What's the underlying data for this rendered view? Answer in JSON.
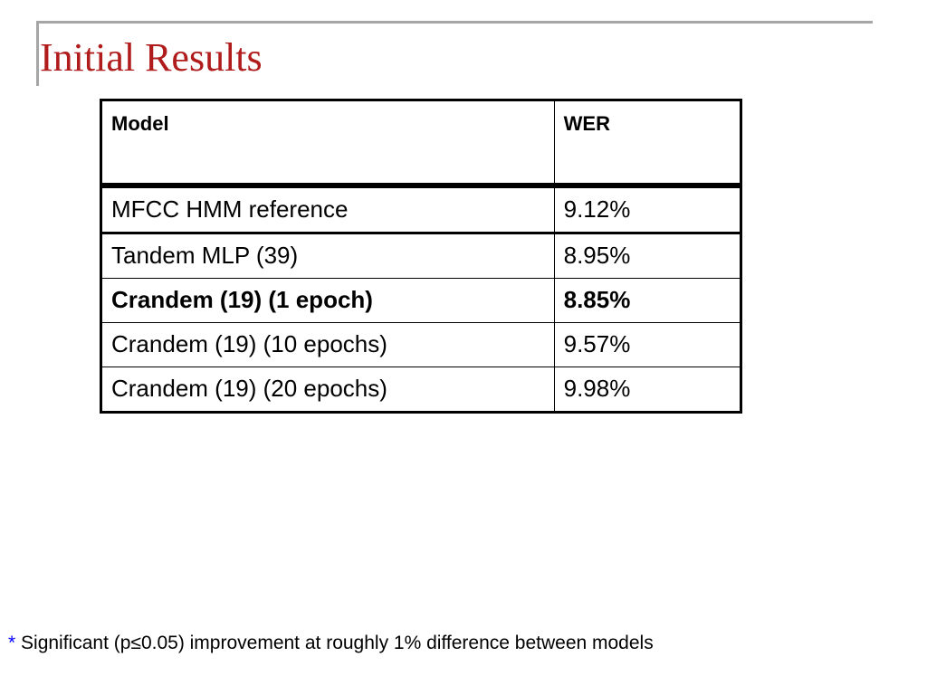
{
  "slide": {
    "title": "Initial Results"
  },
  "table": {
    "headers": [
      "Model",
      "WER"
    ],
    "rows": [
      {
        "model": "MFCC HMM reference",
        "wer": "9.12%",
        "bold": false
      },
      {
        "model": "Tandem MLP (39)",
        "wer": "8.95%",
        "bold": false
      },
      {
        "model": "Crandem (19) (1 epoch)",
        "wer": "8.85%",
        "bold": true
      },
      {
        "model": "Crandem (19) (10 epochs)",
        "wer": "9.57%",
        "bold": false
      },
      {
        "model": "Crandem (19) (20 epochs)",
        "wer": "9.98%",
        "bold": false
      }
    ]
  },
  "footnote": {
    "marker": "*",
    "text": " Significant (p≤0.05) improvement at roughly 1% difference between models"
  },
  "colors": {
    "title": "#b01c1c",
    "footnote_marker": "#0000ff",
    "rule": "#a6a6a6"
  }
}
